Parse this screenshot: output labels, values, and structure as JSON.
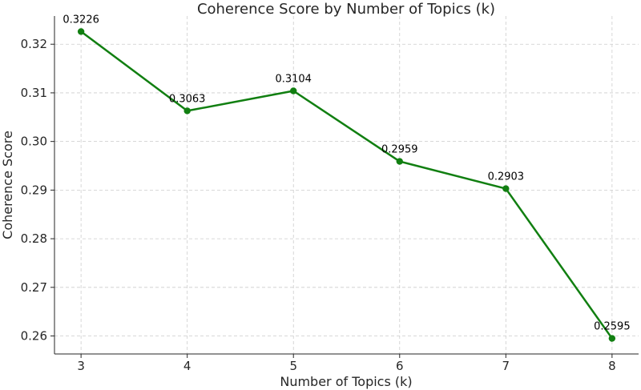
{
  "chart_data": {
    "type": "line",
    "title": "Coherence Score by Number of Topics (k)",
    "xlabel": "Number of Topics (k)",
    "ylabel": "Coherence Score",
    "x": [
      3,
      4,
      5,
      6,
      7,
      8
    ],
    "series": [
      {
        "values": [
          0.3226,
          0.3063,
          0.3104,
          0.2959,
          0.2903,
          0.2595
        ],
        "data_labels": [
          "0.3226",
          "0.3063",
          "0.3104",
          "0.2959",
          "0.2903",
          "0.2595"
        ],
        "color": "#117f11",
        "marker": "circle"
      }
    ],
    "xticks": [
      "3",
      "4",
      "5",
      "6",
      "7",
      "8"
    ],
    "yticks": [
      0.26,
      0.27,
      0.28,
      0.29,
      0.3,
      0.31,
      0.32
    ],
    "ytick_labels": [
      "0.26",
      "0.27",
      "0.28",
      "0.29",
      "0.30",
      "0.31",
      "0.32"
    ],
    "xlim": [
      2.75,
      8.25
    ],
    "ylim": [
      0.2563,
      0.3258
    ],
    "grid": true
  }
}
